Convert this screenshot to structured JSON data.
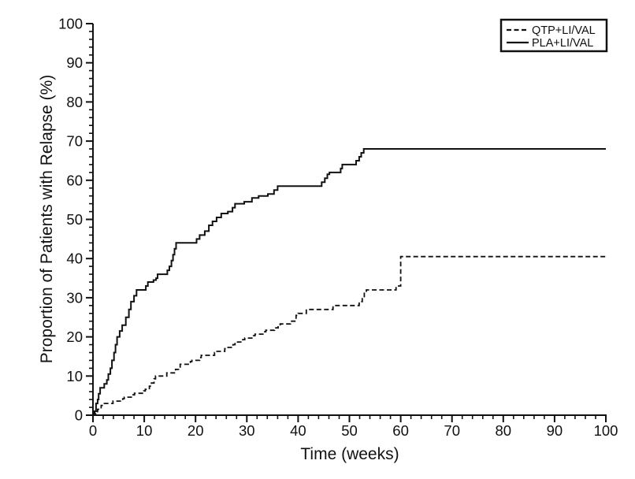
{
  "figure": {
    "background": "#ffffff",
    "line_color": "#111111"
  },
  "chart_data": {
    "type": "line",
    "subtype": "kaplan-meier-step",
    "title": "",
    "xlabel": "Time (weeks)",
    "ylabel": "Proportion of Patients with Relapse (%)",
    "xlim": [
      0,
      100
    ],
    "ylim": [
      0,
      100
    ],
    "x_major_ticks": [
      0,
      10,
      20,
      30,
      40,
      50,
      60,
      70,
      80,
      90,
      100
    ],
    "y_major_ticks": [
      0,
      10,
      20,
      30,
      40,
      50,
      60,
      70,
      80,
      90,
      100
    ],
    "minor_tick_step": 2,
    "grid": false,
    "legend": {
      "position": "top-right",
      "entries": [
        {
          "label": "QTP+LI/VAL",
          "style": "dashed"
        },
        {
          "label": "PLA+LI/VAL",
          "style": "solid"
        }
      ]
    },
    "series": [
      {
        "name": "QTP+LI/VAL",
        "style": "dashed",
        "color": "#111111",
        "final_value": 40.5,
        "points": [
          [
            0,
            0
          ],
          [
            0.5,
            0.5
          ],
          [
            0.9,
            1.5
          ],
          [
            1.6,
            2.5
          ],
          [
            2,
            3
          ],
          [
            3.9,
            3.6
          ],
          [
            5.8,
            4.2
          ],
          [
            6.1,
            4.6
          ],
          [
            7.8,
            5.2
          ],
          [
            8.1,
            5.6
          ],
          [
            9.9,
            6.2
          ],
          [
            10.2,
            6.6
          ],
          [
            11,
            7.4
          ],
          [
            11.4,
            8.2
          ],
          [
            11.9,
            9.3
          ],
          [
            12.2,
            10
          ],
          [
            14.4,
            10.8
          ],
          [
            16.1,
            11.7
          ],
          [
            16.8,
            12.3
          ],
          [
            17,
            13
          ],
          [
            19,
            13.7
          ],
          [
            19.3,
            14
          ],
          [
            20.8,
            14.7
          ],
          [
            21.1,
            15.3
          ],
          [
            23.7,
            16
          ],
          [
            24,
            16.3
          ],
          [
            25.7,
            17
          ],
          [
            26,
            17.3
          ],
          [
            27.3,
            18
          ],
          [
            27.7,
            18.7
          ],
          [
            29.2,
            19.3
          ],
          [
            29.6,
            19.7
          ],
          [
            31.3,
            20.3
          ],
          [
            31.6,
            20.7
          ],
          [
            33.3,
            21.3
          ],
          [
            33.7,
            21.7
          ],
          [
            35.4,
            22.3
          ],
          [
            36.1,
            22.9
          ],
          [
            36.5,
            23.3
          ],
          [
            38.5,
            24
          ],
          [
            39.6,
            25.5
          ],
          [
            40,
            26
          ],
          [
            41.6,
            27
          ],
          [
            46.8,
            28
          ],
          [
            51.9,
            29
          ],
          [
            52.5,
            30
          ],
          [
            52.9,
            31.3
          ],
          [
            53.3,
            32
          ],
          [
            59.1,
            33
          ],
          [
            60,
            40.5
          ]
        ]
      },
      {
        "name": "PLA+LI/VAL",
        "style": "solid",
        "color": "#111111",
        "final_value": 68,
        "points": [
          [
            0,
            0
          ],
          [
            0.3,
            1
          ],
          [
            0.6,
            3
          ],
          [
            0.9,
            4
          ],
          [
            1.1,
            5.5
          ],
          [
            1.4,
            7
          ],
          [
            2.2,
            8
          ],
          [
            2.7,
            9
          ],
          [
            3,
            10.5
          ],
          [
            3.4,
            12
          ],
          [
            3.7,
            14
          ],
          [
            4.1,
            16
          ],
          [
            4.4,
            18
          ],
          [
            4.7,
            20
          ],
          [
            5.2,
            21.5
          ],
          [
            5.7,
            23
          ],
          [
            6.4,
            25
          ],
          [
            7,
            27
          ],
          [
            7.4,
            29
          ],
          [
            8,
            30.5
          ],
          [
            8.5,
            32
          ],
          [
            10.3,
            33
          ],
          [
            10.7,
            34
          ],
          [
            11.8,
            34.5
          ],
          [
            12.3,
            35
          ],
          [
            12.6,
            36
          ],
          [
            14.5,
            37
          ],
          [
            14.9,
            38
          ],
          [
            15.3,
            39.5
          ],
          [
            15.6,
            41
          ],
          [
            15.9,
            42.5
          ],
          [
            16.2,
            44
          ],
          [
            20.2,
            45
          ],
          [
            20.8,
            46
          ],
          [
            21.8,
            47
          ],
          [
            22.6,
            48.5
          ],
          [
            23.3,
            49.5
          ],
          [
            24.1,
            50.5
          ],
          [
            25,
            51.5
          ],
          [
            26.3,
            52
          ],
          [
            27.2,
            53
          ],
          [
            27.7,
            54
          ],
          [
            29.5,
            54.5
          ],
          [
            31,
            55.5
          ],
          [
            32.3,
            56
          ],
          [
            34.1,
            56.5
          ],
          [
            35.3,
            57.5
          ],
          [
            36,
            58.5
          ],
          [
            44.6,
            59.5
          ],
          [
            45.2,
            60.5
          ],
          [
            45.7,
            61.5
          ],
          [
            46.1,
            62
          ],
          [
            48.3,
            63
          ],
          [
            48.6,
            64
          ],
          [
            51.3,
            65
          ],
          [
            51.9,
            66
          ],
          [
            52.3,
            67
          ],
          [
            52.8,
            68
          ]
        ]
      }
    ]
  }
}
